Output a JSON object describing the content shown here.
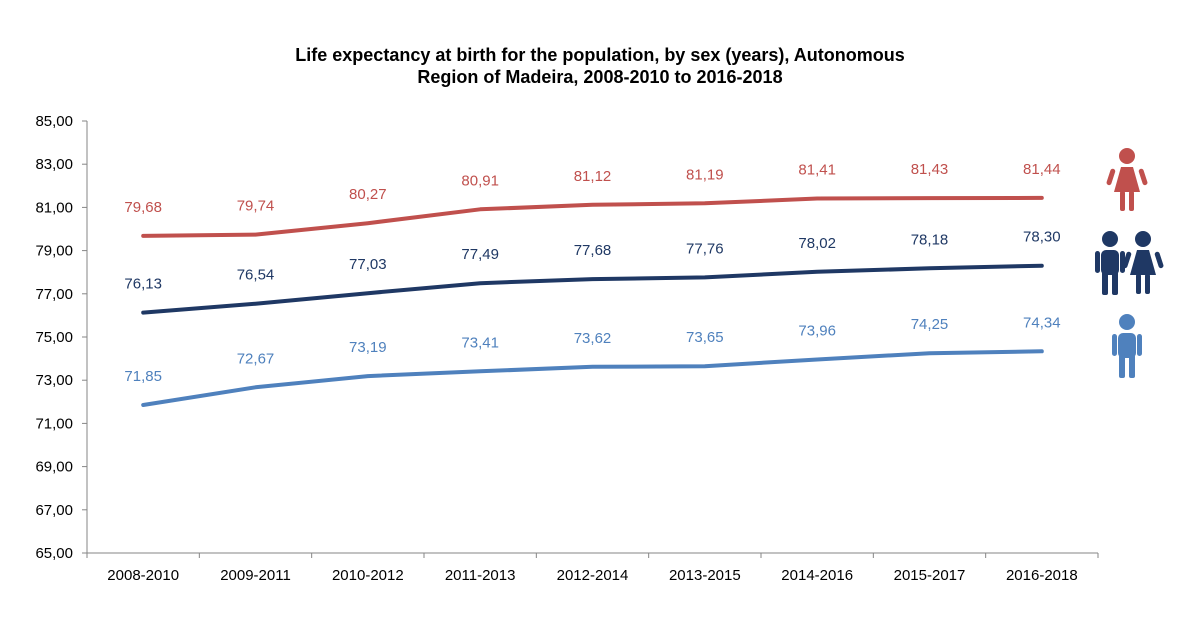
{
  "chart_data": {
    "type": "line",
    "title_lines": [
      "Life expectancy at birth for the population, by sex (years), Autonomous",
      "Region of Madeira, 2008-2010 to 2016-2018"
    ],
    "xlabel": "",
    "ylabel": "",
    "categories": [
      "2008-2010",
      "2009-2011",
      "2010-2012",
      "2011-2013",
      "2012-2014",
      "2013-2015",
      "2014-2016",
      "2015-2017",
      "2016-2018"
    ],
    "ylim": [
      65,
      85
    ],
    "yticks": [
      "65,00",
      "67,00",
      "69,00",
      "71,00",
      "73,00",
      "75,00",
      "77,00",
      "79,00",
      "81,00",
      "83,00",
      "85,00"
    ],
    "grid": false,
    "legend": "icons at right",
    "series": [
      {
        "key": "female",
        "color": "#c0504d",
        "icon": "female-icon",
        "values": [
          79.68,
          79.74,
          80.27,
          80.91,
          81.12,
          81.19,
          81.41,
          81.43,
          81.44
        ],
        "labels": [
          "79,68",
          "79,74",
          "80,27",
          "80,91",
          "81,12",
          "81,19",
          "81,41",
          "81,43",
          "81,44"
        ]
      },
      {
        "key": "total",
        "color": "#1f3864",
        "icon": "male-female-icon",
        "values": [
          76.13,
          76.54,
          77.03,
          77.49,
          77.68,
          77.76,
          78.02,
          78.18,
          78.3
        ],
        "labels": [
          "76,13",
          "76,54",
          "77,03",
          "77,49",
          "77,68",
          "77,76",
          "78,02",
          "78,18",
          "78,30"
        ]
      },
      {
        "key": "male",
        "color": "#4f81bd",
        "icon": "male-icon",
        "values": [
          71.85,
          72.67,
          73.19,
          73.41,
          73.62,
          73.65,
          73.96,
          74.25,
          74.34
        ],
        "labels": [
          "71,85",
          "72,67",
          "73,19",
          "73,41",
          "73,62",
          "73,65",
          "73,96",
          "74,25",
          "74,34"
        ]
      }
    ]
  }
}
